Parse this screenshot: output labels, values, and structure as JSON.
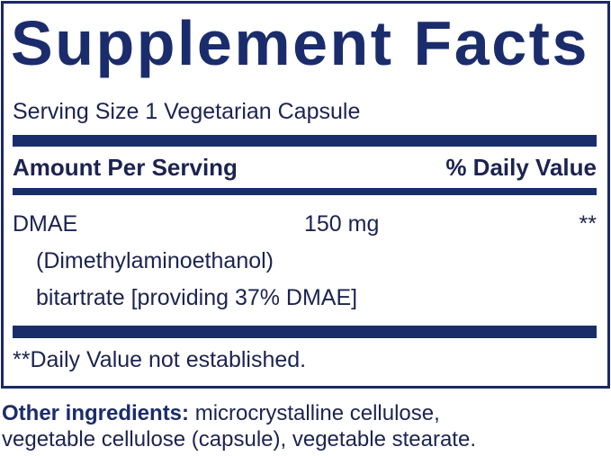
{
  "label": {
    "title": "Supplement Facts",
    "serving_size": "Serving Size 1 Vegetarian Capsule",
    "header": {
      "amount_per_serving": "Amount Per Serving",
      "daily_value": "% Daily Value"
    },
    "ingredients": [
      {
        "name": "DMAE",
        "detail_line1": "(Dimethylaminoethanol)",
        "detail_line2": "bitartrate [providing 37% DMAE]",
        "amount": "150 mg",
        "daily_value": "**"
      }
    ],
    "footnote": "**Daily Value not established."
  },
  "other_ingredients": {
    "label": "Other ingredients:",
    "line1": "microcrystalline cellulose,",
    "line2": "vegetable cellulose (capsule), vegetable stearate."
  },
  "colors": {
    "navy": "#1a2d6b",
    "text": "#1c2350"
  }
}
